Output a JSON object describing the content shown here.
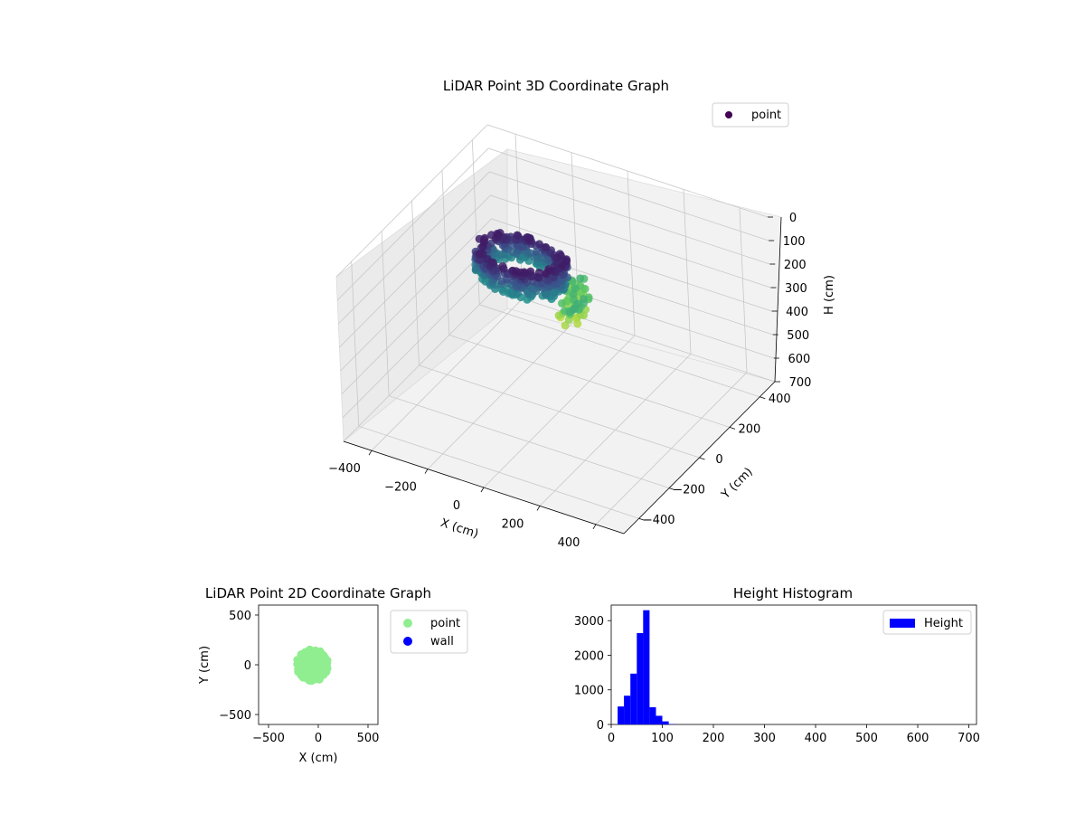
{
  "chart_data": [
    {
      "type": "scatter",
      "projection": "3d",
      "title": "LiDAR Point 3D Coordinate Graph",
      "xlabel": "X (cm)",
      "ylabel": "Y (cm)",
      "zlabel": "H (cm)",
      "xticks": [
        "−400",
        "−200",
        "0",
        "200",
        "400"
      ],
      "yticks": [
        "−400",
        "−200",
        "0",
        "200",
        "400"
      ],
      "zticks": [
        "0",
        "100",
        "200",
        "300",
        "400",
        "500",
        "600",
        "700"
      ],
      "xlim": [
        -500,
        500
      ],
      "ylim": [
        -500,
        500
      ],
      "zlim": [
        0,
        700
      ],
      "z_inverted": true,
      "colormap": "viridis",
      "legend": {
        "position": "top-right",
        "entries": [
          {
            "name": "point",
            "color": "#440154"
          }
        ]
      },
      "series": [
        {
          "name": "point",
          "cluster": {
            "center_x": -80,
            "center_y": -60,
            "radius": 150,
            "height_range": [
              20,
              130
            ]
          }
        }
      ]
    },
    {
      "type": "scatter",
      "title": "LiDAR Point 2D Coordinate Graph",
      "xlabel": "X (cm)",
      "ylabel": "Y (cm)",
      "xticks": [
        "−500",
        "0",
        "500"
      ],
      "yticks": [
        "500",
        "0",
        "−500"
      ],
      "xlim": [
        -600,
        600
      ],
      "ylim": [
        -600,
        600
      ],
      "legend": {
        "position": "outside-right",
        "entries": [
          {
            "name": "point",
            "color": "#90ee90"
          },
          {
            "name": "wall",
            "color": "#0000ff"
          }
        ]
      },
      "series": [
        {
          "name": "point",
          "color": "#90ee90",
          "cluster": {
            "center_x": -60,
            "center_y": -5,
            "radius": 165,
            "x_range": [
              -230,
              140
            ],
            "y_range": [
              -170,
              170
            ]
          }
        },
        {
          "name": "wall",
          "color": "#0000ff",
          "points": []
        }
      ]
    },
    {
      "type": "bar",
      "subtype": "histogram",
      "title": "Height Histogram",
      "xticks": [
        "0",
        "100",
        "200",
        "300",
        "400",
        "500",
        "600",
        "700"
      ],
      "yticks": [
        "0",
        "1000",
        "2000",
        "3000"
      ],
      "xlim": [
        0,
        715
      ],
      "ylim": [
        0,
        3450
      ],
      "bin_width": 12.5,
      "legend": {
        "position": "top-right",
        "entries": [
          {
            "name": "Height",
            "color": "#0000ff"
          }
        ]
      },
      "series": [
        {
          "name": "Height",
          "color": "#0000ff",
          "bin_edges": [
            12.5,
            25,
            37.5,
            50,
            62.5,
            75,
            87.5,
            100,
            112.5,
            125
          ],
          "values": [
            520,
            830,
            1470,
            2640,
            3300,
            500,
            250,
            90,
            10
          ]
        }
      ]
    }
  ]
}
